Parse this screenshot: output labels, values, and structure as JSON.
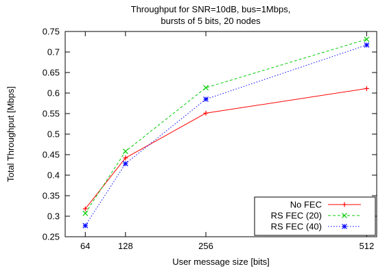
{
  "chart_data": {
    "type": "line",
    "title": "Throughput for SNR=10dB, bus=1Mbps,",
    "subtitle": "bursts of 5 bits, 20 nodes",
    "xlabel": "User message size [bits]",
    "ylabel": "Total Throughput [Mbps]",
    "x": [
      64,
      128,
      256,
      512
    ],
    "x_tick_labels": [
      "64",
      "128",
      "256",
      "512"
    ],
    "xlim": [
      32,
      528
    ],
    "ylim": [
      0.25,
      0.75
    ],
    "y_ticks": [
      0.25,
      0.3,
      0.35,
      0.4,
      0.45,
      0.5,
      0.55,
      0.6,
      0.65,
      0.7,
      0.75
    ],
    "y_tick_labels": [
      "0.25",
      "0.3",
      "0.35",
      "0.4",
      "0.45",
      "0.5",
      "0.55",
      "0.6",
      "0.65",
      "0.7",
      "0.75"
    ],
    "grid": false,
    "legend_position": "bottom-right",
    "series": [
      {
        "name": "No FEC",
        "values": [
          0.318,
          0.442,
          0.551,
          0.611
        ],
        "color": "#ff0000",
        "marker": "plus",
        "dash": "solid"
      },
      {
        "name": "RS FEC (20)",
        "values": [
          0.307,
          0.458,
          0.613,
          0.731
        ],
        "color": "#00cc00",
        "marker": "cross",
        "dash": "dashed"
      },
      {
        "name": "RS FEC (40)",
        "values": [
          0.277,
          0.428,
          0.585,
          0.717
        ],
        "color": "#0000ff",
        "marker": "star",
        "dash": "dotted"
      }
    ]
  }
}
